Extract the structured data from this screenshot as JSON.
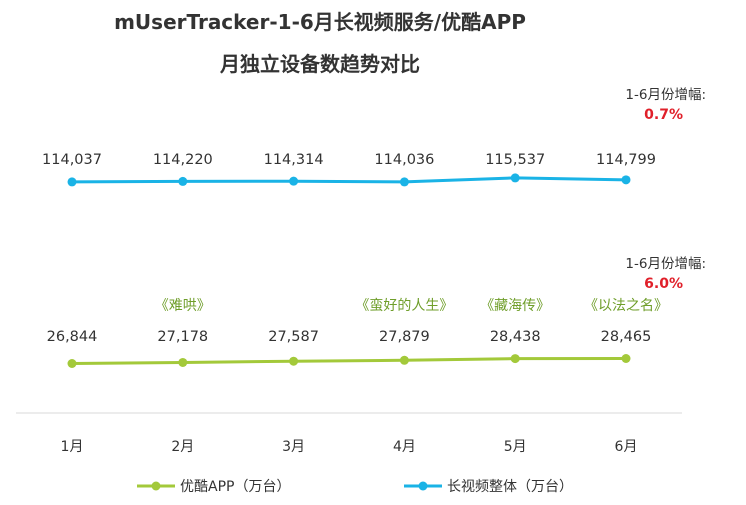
{
  "chart_data": {
    "type": "line",
    "title_line1": "mUserTracker-1-6月长视频服务/优酷APP",
    "title_line2": "月独立设备数趋势对比",
    "categories": [
      "1月",
      "2月",
      "3月",
      "4月",
      "5月",
      "6月"
    ],
    "series": [
      {
        "name": "长视频整体（万台）",
        "values": [
          114037,
          114220,
          114314,
          114036,
          115537,
          114799
        ],
        "labels": [
          "114,037",
          "114,220",
          "114,314",
          "114,036",
          "115,537",
          "114,799"
        ],
        "growth_label": "1-6月份增幅:",
        "growth_value": "0.7%"
      },
      {
        "name": "优酷APP（万台）",
        "values": [
          26844,
          27178,
          27587,
          27879,
          28438,
          28465
        ],
        "labels": [
          "26,844",
          "27,178",
          "27,587",
          "27,879",
          "28,438",
          "28,465"
        ],
        "growth_label": "1-6月份增幅:",
        "growth_value": "6.0%"
      }
    ],
    "annotations": [
      {
        "category": "2月",
        "text": "《难哄》"
      },
      {
        "category": "4月",
        "text": "《蛮好的人生》"
      },
      {
        "category": "5月",
        "text": "《藏海传》"
      },
      {
        "category": "6月",
        "text": "《以法之名》"
      }
    ],
    "legend": {
      "placement": "bottom",
      "items": [
        "优酷APP（万台）",
        "长视频整体（万台）"
      ]
    },
    "grid": false,
    "colors": {
      "overall": "#1ab3e6",
      "youku": "#a3c93a",
      "growth": "#e0202a",
      "annotation": "#6f9e2a"
    }
  }
}
